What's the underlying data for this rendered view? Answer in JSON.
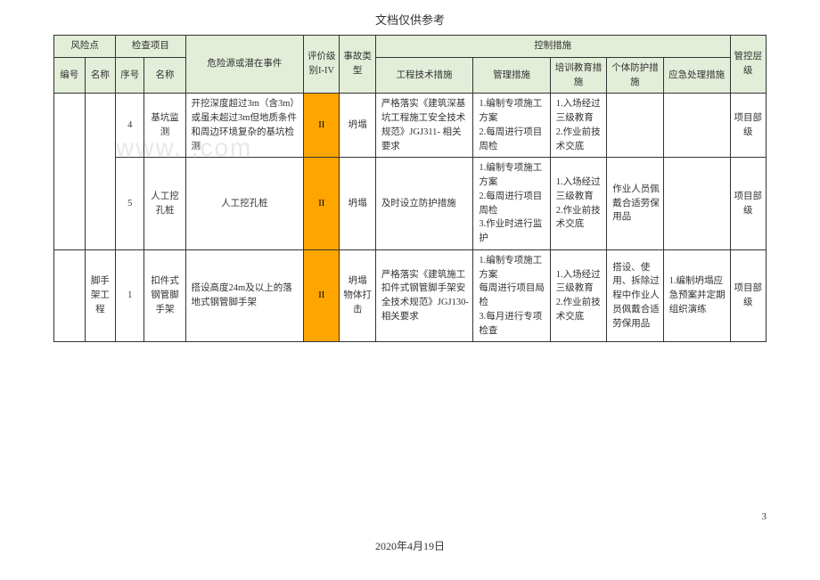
{
  "doc_header": "文档仅供参考",
  "watermark": "www.      .com",
  "footer_date": "2020年4月19日",
  "page_number": "3",
  "header": {
    "risk_point": "风险点",
    "check_item": "检查项目",
    "hazard": "危险源或潜在事件",
    "eval_level": "评价级别I-IV",
    "accident_type": "事故类型",
    "control_measures": "控制措施",
    "mgmt_level": "管控层级",
    "num": "编号",
    "name": "名称",
    "seq": "序号",
    "name2": "名称",
    "eng_tech": "工程技术措施",
    "mgmt_measure": "管理措施",
    "training": "培训教育措施",
    "ppe": "个体防护措施",
    "emergency": "应急处理措施"
  },
  "rows": [
    {
      "seq": "4",
      "item_name": "基坑监测",
      "hazard": "开挖深度超过3m（含3m）或虽未超过3m但地质条件和周边环境复杂的基坑检测",
      "level": "II",
      "accident": "坍塌",
      "eng": "严格落实《建筑深基坑工程施工安全技术规范》JGJ311- 相关要求",
      "mgmt": "1.编制专项施工方案\n2.每周进行项目周检",
      "train": "1.入场经过三级教育\n2.作业前技术交底",
      "ppe": "",
      "emerg": "",
      "ctrl": "项目部级"
    },
    {
      "seq": "5",
      "item_name": "人工挖孔桩",
      "hazard": "人工挖孔桩",
      "level": "II",
      "accident": "坍塌",
      "eng": "及时设立防护措施",
      "mgmt": "1.编制专项施工方案\n2.每周进行项目周检\n3.作业时进行监护",
      "train": "1.入场经过三级教育\n2.作业前技术交底",
      "ppe": "作业人员佩戴合适劳保用品",
      "emerg": "",
      "ctrl": "项目部级"
    },
    {
      "risk_name": "脚手架工程",
      "seq": "1",
      "item_name": "扣件式钢管脚手架",
      "hazard": "搭设高度24m及以上的落地式钢管脚手架",
      "level": "II",
      "accident": "坍塌\n物体打击",
      "eng": "严格落实《建筑施工扣件式钢管脚手架安全技术规范》JGJ130- 相关要求",
      "mgmt": "1.编制专项施工方案\n每周进行项目局检\n3.每月进行专项检查",
      "train": "1.入场经过三级教育\n2.作业前技术交底",
      "ppe": "搭设、使用、拆除过程中作业人员佩戴合适劳保用品",
      "emerg": "1.编制坍塌应急预案并定期组织演练",
      "ctrl": "项目部级"
    }
  ]
}
